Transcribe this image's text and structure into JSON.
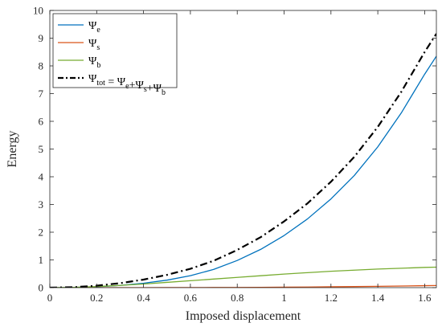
{
  "chart_data": {
    "type": "line",
    "title": "",
    "xlabel": "Imposed displacement",
    "ylabel": "Energy",
    "xlim": [
      0,
      1.65
    ],
    "ylim": [
      0,
      10
    ],
    "xticks": [
      "0",
      "0.2",
      "0.4",
      "0.6",
      "0.8",
      "1",
      "1.2",
      "1.4",
      "1.6"
    ],
    "xtick_values": [
      0,
      0.2,
      0.4,
      0.6,
      0.8,
      1,
      1.2,
      1.4,
      1.6
    ],
    "yticks": [
      "0",
      "1",
      "2",
      "3",
      "4",
      "5",
      "6",
      "7",
      "8",
      "9",
      "10"
    ],
    "ytick_values": [
      0,
      1,
      2,
      3,
      4,
      5,
      6,
      7,
      8,
      9,
      10
    ],
    "grid": false,
    "legend_position": "top-left",
    "x": [
      0,
      0.1,
      0.2,
      0.3,
      0.4,
      0.5,
      0.6,
      0.7,
      0.8,
      0.9,
      1.0,
      1.1,
      1.2,
      1.3,
      1.4,
      1.5,
      1.6,
      1.65
    ],
    "series": [
      {
        "name": "Ψe",
        "legend": {
          "base": "Ψ",
          "sub": "e"
        },
        "color": "#0072BD",
        "style": "solid",
        "values": [
          0,
          0.005,
          0.03,
          0.08,
          0.16,
          0.27,
          0.43,
          0.66,
          0.98,
          1.38,
          1.88,
          2.48,
          3.2,
          4.05,
          5.08,
          6.3,
          7.7,
          8.35
        ]
      },
      {
        "name": "Ψs",
        "legend": {
          "base": "Ψ",
          "sub": "s"
        },
        "color": "#D95319",
        "style": "solid",
        "values": [
          0,
          0,
          0,
          0,
          0.001,
          0.002,
          0.003,
          0.005,
          0.008,
          0.012,
          0.016,
          0.022,
          0.03,
          0.038,
          0.048,
          0.058,
          0.07,
          0.075
        ]
      },
      {
        "name": "Ψb",
        "legend": {
          "base": "Ψ",
          "sub": "b"
        },
        "color": "#77AC30",
        "style": "solid",
        "values": [
          0,
          0.01,
          0.04,
          0.08,
          0.13,
          0.19,
          0.25,
          0.31,
          0.37,
          0.43,
          0.49,
          0.54,
          0.59,
          0.63,
          0.67,
          0.7,
          0.73,
          0.74
        ]
      },
      {
        "name": "Ψtot = Ψe + Ψs + Ψb",
        "legend": {
          "parts": [
            [
              "Ψ",
              "tot"
            ],
            [
              " = Ψ",
              "e"
            ],
            [
              "+Ψ",
              "s"
            ],
            [
              "+Ψ",
              "b"
            ]
          ]
        },
        "color": "#000000",
        "style": "dashdot",
        "values": [
          0,
          0.015,
          0.07,
          0.16,
          0.29,
          0.46,
          0.68,
          0.97,
          1.36,
          1.82,
          2.39,
          3.04,
          3.82,
          4.72,
          5.8,
          7.06,
          8.5,
          9.16
        ]
      }
    ]
  }
}
